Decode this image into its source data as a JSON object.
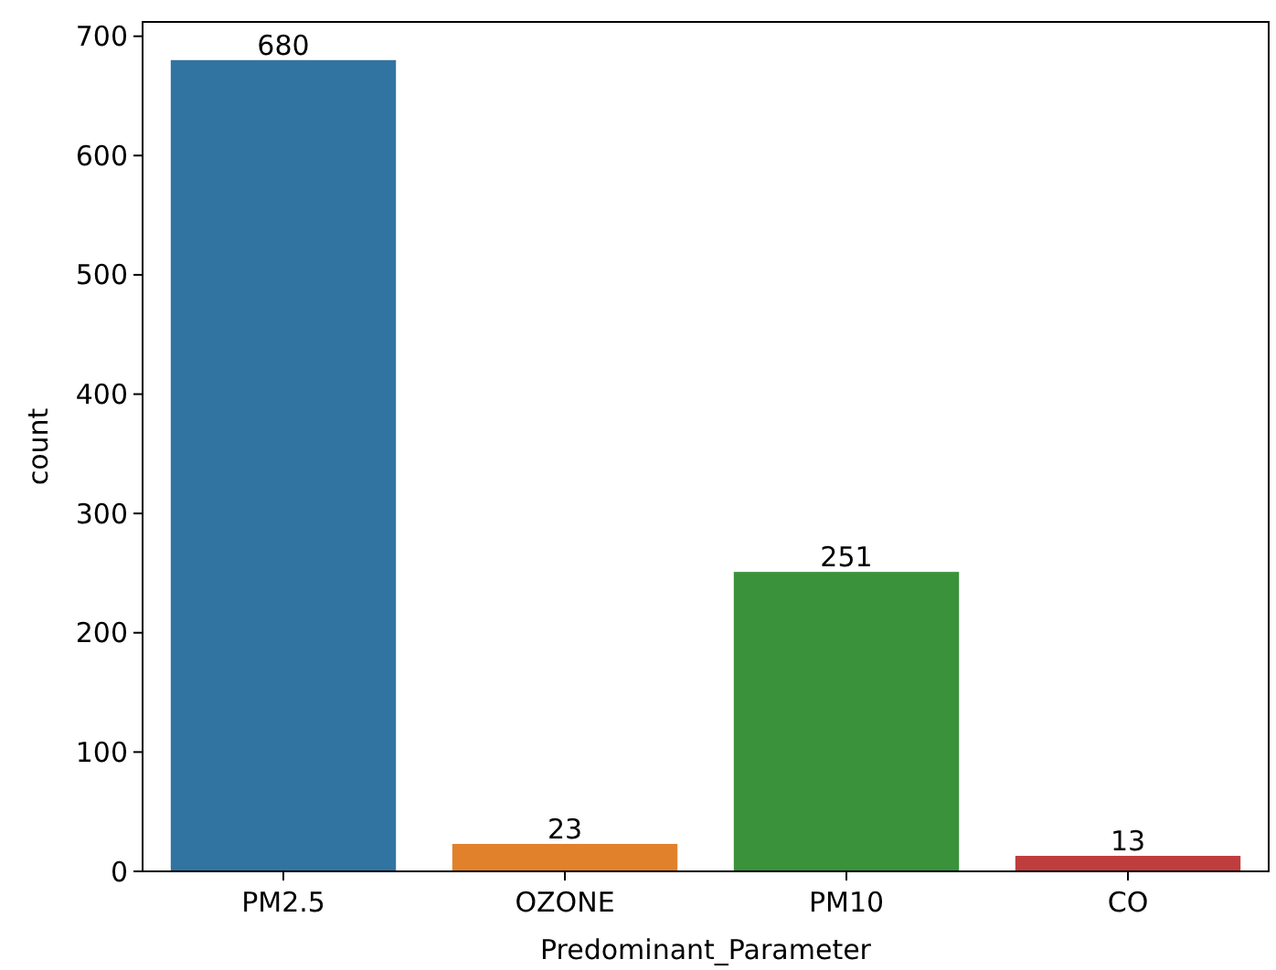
{
  "chart_data": {
    "type": "bar",
    "xlabel": "Predominant_Parameter",
    "ylabel": "count",
    "categories": [
      "PM2.5",
      "OZONE",
      "PM10",
      "CO"
    ],
    "values": [
      680,
      23,
      251,
      13
    ],
    "colors": [
      "#3274a1",
      "#e1812c",
      "#3a923a",
      "#c03d3e"
    ],
    "ylim": [
      0,
      712
    ],
    "yticks": [
      0,
      100,
      200,
      300,
      400,
      500,
      600,
      700
    ],
    "data_labels": true,
    "grid": false
  }
}
